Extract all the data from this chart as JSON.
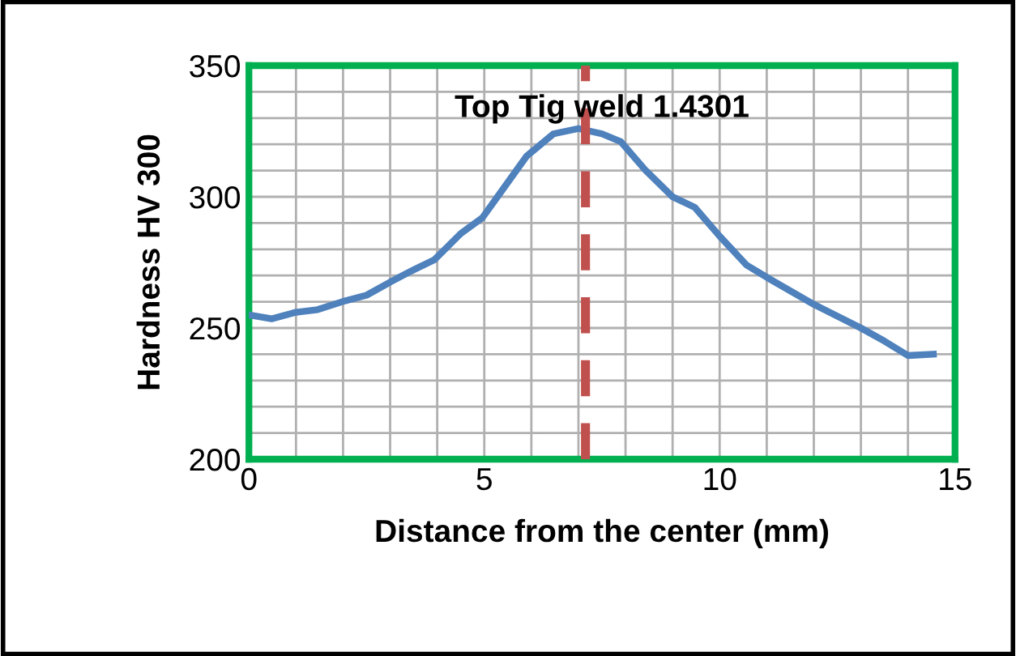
{
  "chart_data": {
    "type": "line",
    "title": "Top Tig weld 1.4301",
    "xlabel": "Distance from the center (mm)",
    "ylabel": "Hardness HV 300",
    "x": [
      0,
      0.48,
      1.0,
      1.46,
      1.98,
      2.5,
      3.0,
      3.48,
      3.94,
      4.5,
      4.96,
      5.44,
      5.9,
      6.47,
      7.0,
      7.5,
      7.9,
      8.43,
      9.0,
      9.47,
      10.0,
      10.57,
      11.08,
      12.0,
      13.0,
      13.5,
      14.0,
      14.54
    ],
    "series": [
      {
        "color": "#4f81bd",
        "values": [
          255,
          253.5,
          256,
          257,
          260,
          262.5,
          267.5,
          272,
          276,
          286,
          292,
          304,
          315.5,
          324,
          326,
          324,
          321,
          310,
          300,
          296,
          285,
          274,
          268.5,
          259,
          250,
          245,
          239.5,
          240
        ]
      }
    ],
    "xlim": [
      0,
      15
    ],
    "ylim": [
      200,
      350
    ],
    "xticks": [
      0,
      {
        "value": 1,
        "label": null
      },
      {
        "value": 2,
        "label": null
      },
      {
        "value": 3,
        "label": null
      },
      {
        "value": 4,
        "label": null
      },
      5,
      {
        "value": 6,
        "label": null
      },
      {
        "value": 7,
        "label": null
      },
      {
        "value": 8,
        "label": null
      },
      {
        "value": 9,
        "label": null
      },
      10,
      {
        "value": 11,
        "label": null
      },
      {
        "value": 12,
        "label": null
      },
      {
        "value": 13,
        "label": null
      },
      {
        "value": 14,
        "label": null
      },
      15
    ],
    "yticks": [
      200,
      {
        "value": 210,
        "label": null
      },
      {
        "value": 220,
        "label": null
      },
      {
        "value": 230,
        "label": null
      },
      {
        "value": 240,
        "label": null
      },
      250,
      {
        "value": 260,
        "label": null
      },
      {
        "value": 270,
        "label": null
      },
      {
        "value": 280,
        "label": null
      },
      {
        "value": 290,
        "label": null
      },
      300,
      {
        "value": 310,
        "label": null
      },
      {
        "value": 320,
        "label": null
      },
      {
        "value": 330,
        "label": null
      },
      {
        "value": 340,
        "label": null
      },
      350
    ],
    "grid": true,
    "marker": "none",
    "line_style": "solid",
    "ref_lines": [
      {
        "axis": "x",
        "value": 7.15,
        "color": "#c0504d",
        "line_style": "dashed"
      }
    ]
  }
}
